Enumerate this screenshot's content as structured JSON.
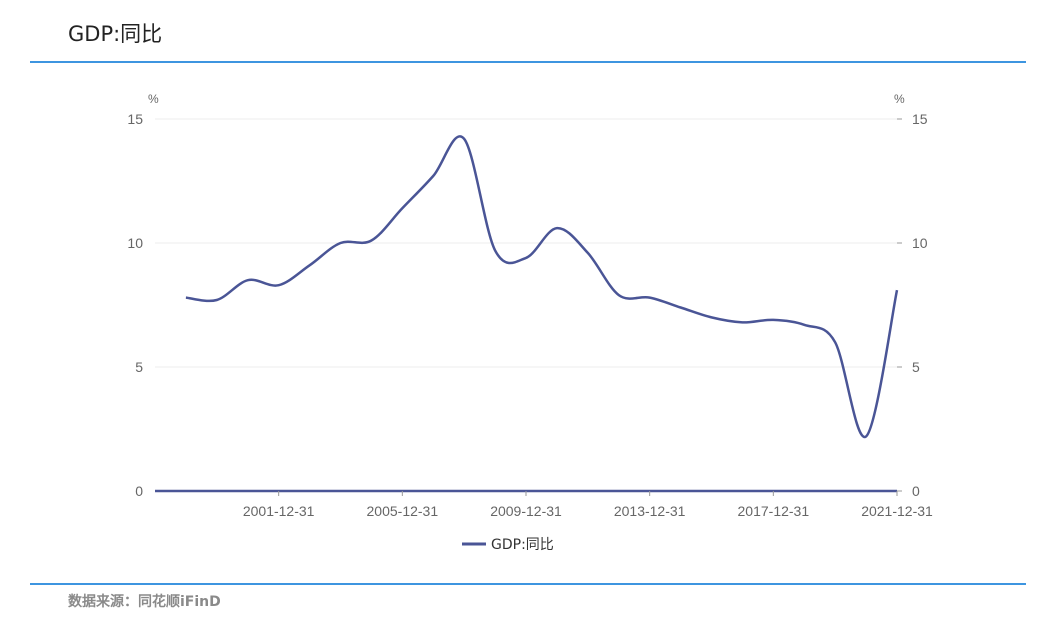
{
  "title": "GDP:同比",
  "source": "数据来源：同花顺iFinD",
  "chart_data": {
    "type": "line",
    "title": "GDP:同比",
    "y_unit_left": "%",
    "y_unit_right": "%",
    "ylim": [
      0,
      15
    ],
    "yticks": [
      0,
      5,
      10,
      15
    ],
    "xlim": [
      "1997-12-31",
      "2021-12-31"
    ],
    "xticks": [
      "2001-12-31",
      "2005-12-31",
      "2009-12-31",
      "2013-12-31",
      "2017-12-31",
      "2021-12-31"
    ],
    "grid": true,
    "legend": "bottom-center",
    "color": "#4a5596",
    "x": [
      "1998-12-31",
      "1999-12-31",
      "2000-12-31",
      "2001-12-31",
      "2002-12-31",
      "2003-12-31",
      "2004-12-31",
      "2005-12-31",
      "2006-12-31",
      "2007-12-31",
      "2008-12-31",
      "2009-12-31",
      "2010-12-31",
      "2011-12-31",
      "2012-12-31",
      "2013-12-31",
      "2014-12-31",
      "2015-12-31",
      "2016-12-31",
      "2017-12-31",
      "2018-12-31",
      "2019-12-31",
      "2020-12-31",
      "2021-12-31"
    ],
    "series": [
      {
        "name": "GDP:同比",
        "values": [
          7.8,
          7.7,
          8.5,
          8.3,
          9.1,
          10.0,
          10.1,
          11.4,
          12.7,
          14.2,
          9.7,
          9.4,
          10.6,
          9.6,
          7.9,
          7.8,
          7.4,
          7.0,
          6.8,
          6.9,
          6.7,
          6.0,
          2.2,
          8.1
        ]
      }
    ]
  }
}
